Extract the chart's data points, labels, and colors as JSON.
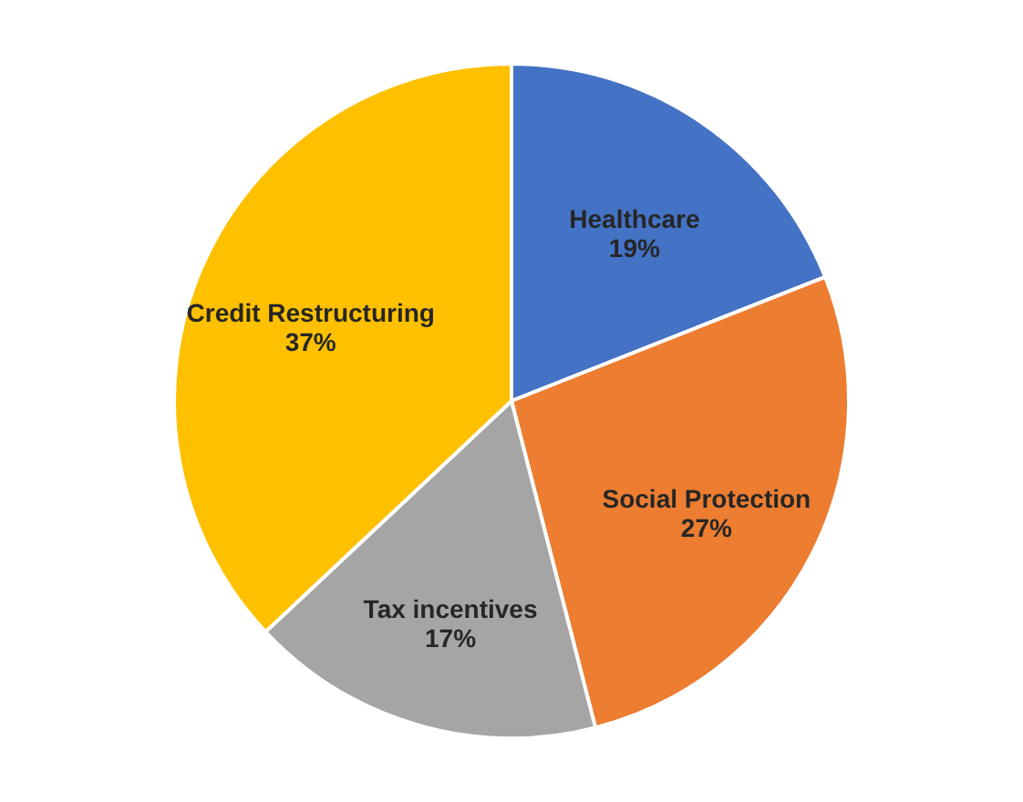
{
  "chart_data": {
    "type": "pie",
    "categories": [
      "Healthcare",
      "Social Protection",
      "Tax incentives",
      "Credit Restructuring"
    ],
    "values": [
      19,
      27,
      17,
      37
    ],
    "value_labels": [
      "19%",
      "27%",
      "17%",
      "37%"
    ],
    "colors": [
      "#4472c4",
      "#ed7d31",
      "#a5a5a5",
      "#ffc000"
    ]
  }
}
